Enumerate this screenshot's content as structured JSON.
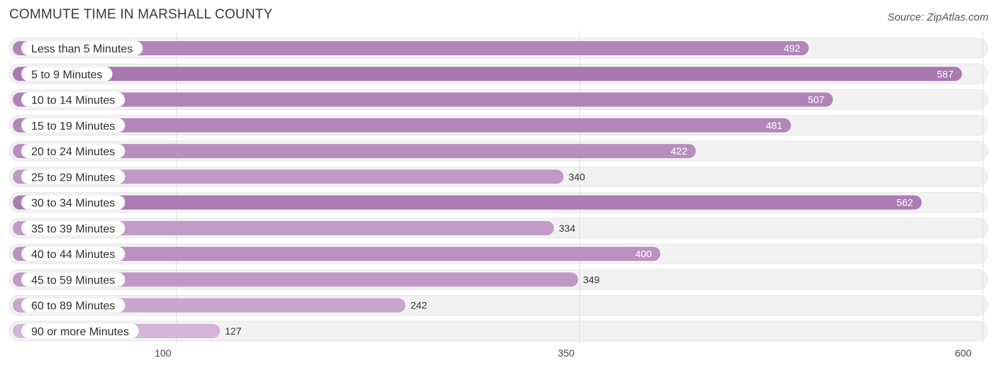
{
  "header": {
    "title": "COMMUTE TIME IN MARSHALL COUNTY",
    "source": "Source: ZipAtlas.com"
  },
  "colors": {
    "bar_strong": "#a978b1",
    "bar_light": "#d4b5d8",
    "track": "#f2f2f2",
    "grid": "#dddddd",
    "value_inside": "#ffffff",
    "value_outside": "#333333"
  },
  "chart_data": {
    "type": "bar",
    "orientation": "horizontal",
    "title": "COMMUTE TIME IN MARSHALL COUNTY",
    "categories": [
      "Less than 5 Minutes",
      "5 to 9 Minutes",
      "10 to 14 Minutes",
      "15 to 19 Minutes",
      "20 to 24 Minutes",
      "25 to 29 Minutes",
      "30 to 34 Minutes",
      "35 to 39 Minutes",
      "40 to 44 Minutes",
      "45 to 59 Minutes",
      "60 to 89 Minutes",
      "90 or more Minutes"
    ],
    "values": [
      492,
      587,
      507,
      481,
      422,
      340,
      562,
      334,
      400,
      349,
      242,
      127
    ],
    "xticks": [
      100,
      350,
      600
    ],
    "xlim": [
      0,
      600
    ],
    "grid": true,
    "legend": "none"
  }
}
